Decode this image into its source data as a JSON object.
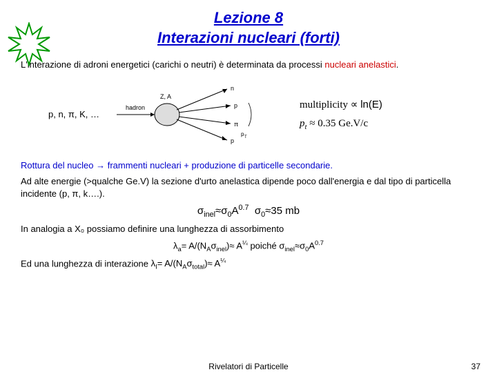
{
  "title_line1": "Lezione 8",
  "title_line2": "Interazioni nucleari (forti)",
  "para1_a": "L'interazione di adroni energetici (carichi o neutri) è determinata da processi ",
  "para1_b": "nucleari anelastici",
  "para1_c": ".",
  "diagram_label": "p, n, π, K, …",
  "diagram": {
    "hadron": "hadron",
    "target": "Z, A",
    "out1": "n",
    "out2": "p",
    "out3": "π",
    "out4": "p"
  },
  "multiplicity_a": "multiplicity ∝ ",
  "multiplicity_b": "ln(E)",
  "pt_a": "p",
  "pt_sub": "t",
  "pt_b": " ≈ 0.35 Ge.V/c",
  "para2_a": "Rottura del nucleo → frammenti nucleari + produzione di particelle secondarie.",
  "para3": "Ad alte energie (>qualche Ge.V) la sezione d'urto anelastica dipende poco dall'energia e dal tipo di particella incidente (p, π, k….).",
  "formula1_html": "σ<sub>inel</sub>≈σ<sub>0</sub>A<sup>0.7</sup>&nbsp;&nbsp;σ<sub>0</sub>≈35 mb",
  "para4": "In analogia a X₀ possiamo definire una lunghezza di assorbimento",
  "formula2_html": "λ<sub>a</sub>= A/(N<sub>A</sub>σ<sub>inel</sub>)≈ A<sup>¼</sup> poiché σ<sub>inel</sub>≈σ<sub>0</sub>A<sup>0.7</sup>",
  "para5_a": "Ed una lunghezza di interazione  ",
  "formula3_html": "λ<sub>I</sub>= A/(N<sub>A</sub>σ<sub>total</sub>)≈ A<sup>¼</sup>",
  "footer": "Rivelatori di Particelle",
  "pagenum": "37",
  "colors": {
    "title": "#0000cc",
    "red": "#cc0000",
    "blue": "#0000cc",
    "star_stroke": "#009900",
    "star_fill": "#ffffff"
  }
}
